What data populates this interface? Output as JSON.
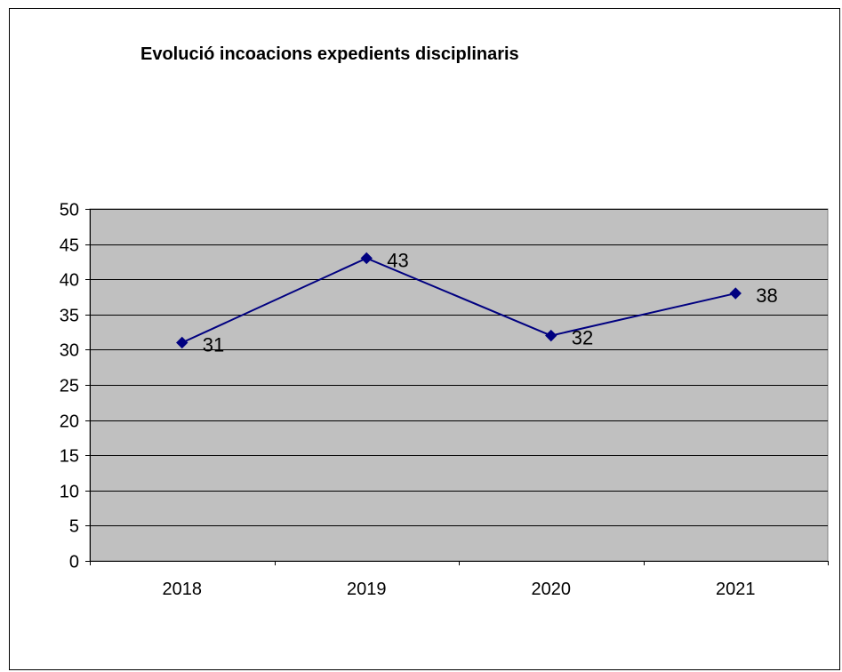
{
  "chart_data": {
    "type": "line",
    "title": "Evolució incoacions expedients disciplinaris",
    "xlabel": "",
    "ylabel": "",
    "categories": [
      "2018",
      "2019",
      "2020",
      "2021"
    ],
    "series": [
      {
        "values": [
          31,
          43,
          32,
          38
        ]
      }
    ],
    "data_labels": [
      "31",
      "43",
      "32",
      "38"
    ],
    "ylim": [
      0,
      50
    ],
    "yticks": [
      "0",
      "5",
      "10",
      "15",
      "20",
      "25",
      "30",
      "35",
      "40",
      "45",
      "50"
    ],
    "grid": true,
    "legend": "none",
    "colors": {
      "plot_background": "#c0c0c0",
      "line": "#000080",
      "marker": "#000080",
      "gridline": "#000000"
    }
  }
}
